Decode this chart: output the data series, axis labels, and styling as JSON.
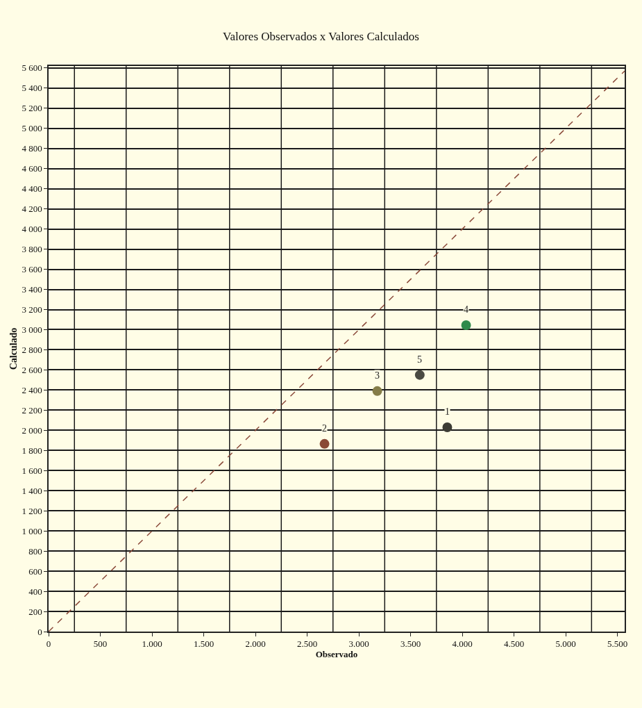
{
  "chart_data": {
    "type": "scatter",
    "title": "Valores Observados x Valores Calculados",
    "xlabel": "Observado",
    "ylabel": "Calculado",
    "x": [
      3855,
      2668,
      3178,
      4037,
      3589
    ],
    "series": [
      {
        "colors": [
          "#3c3c34",
          "#8a4a36",
          "#857d48",
          "#2f8a4c",
          "#4a4a42"
        ],
        "values": [
          2030,
          1865,
          2390,
          3045,
          2550
        ],
        "marker": "circle"
      },
      {
        "type": "line",
        "color": "#8b4a3a",
        "x": [
          0,
          5570
        ],
        "values": [
          0,
          5570
        ],
        "line_style": "dashed",
        "marker": "none"
      }
    ],
    "xlim": [
      0,
      5570
    ],
    "ylim": [
      0,
      5620
    ],
    "xticks": [
      0,
      500,
      {
        "value": 1000,
        "label": "1.000"
      },
      {
        "value": 1500,
        "label": "1.500"
      },
      {
        "value": 2000,
        "label": "2.000"
      },
      {
        "value": 2500,
        "label": "2.500"
      },
      {
        "value": 3000,
        "label": "3.000"
      },
      {
        "value": 3500,
        "label": "3.500"
      },
      {
        "value": 4000,
        "label": "4.000"
      },
      {
        "value": 4500,
        "label": "4.500"
      },
      {
        "value": 5000,
        "label": "5.000"
      },
      {
        "value": 5500,
        "label": "5.500"
      },
      {
        "value": 250,
        "label": null
      },
      {
        "value": 750,
        "label": null
      },
      {
        "value": 1250,
        "label": null
      },
      {
        "value": 1750,
        "label": null
      },
      {
        "value": 2250,
        "label": null
      },
      {
        "value": 2750,
        "label": null
      },
      {
        "value": 3250,
        "label": null
      },
      {
        "value": 3750,
        "label": null
      },
      {
        "value": 4250,
        "label": null
      },
      {
        "value": 4750,
        "label": null
      },
      {
        "value": 5250,
        "label": null
      }
    ],
    "yticks": [
      0,
      200,
      400,
      600,
      800,
      {
        "value": 1000,
        "label": "1 000"
      },
      {
        "value": 1200,
        "label": "1 200"
      },
      {
        "value": 1400,
        "label": "1 400"
      },
      {
        "value": 1600,
        "label": "1 600"
      },
      {
        "value": 1800,
        "label": "1 800"
      },
      {
        "value": 2000,
        "label": "2 000"
      },
      {
        "value": 2200,
        "label": "2 200"
      },
      {
        "value": 2400,
        "label": "2 400"
      },
      {
        "value": 2600,
        "label": "2 600"
      },
      {
        "value": 2800,
        "label": "2 800"
      },
      {
        "value": 3000,
        "label": "3 000"
      },
      {
        "value": 3200,
        "label": "3 200"
      },
      {
        "value": 3400,
        "label": "3 400"
      },
      {
        "value": 3600,
        "label": "3 600"
      },
      {
        "value": 3800,
        "label": "3 800"
      },
      {
        "value": 4000,
        "label": "4 000"
      },
      {
        "value": 4200,
        "label": "4 200"
      },
      {
        "value": 4400,
        "label": "4 400"
      },
      {
        "value": 4600,
        "label": "4 600"
      },
      {
        "value": 4800,
        "label": "4 800"
      },
      {
        "value": 5000,
        "label": "5 000"
      },
      {
        "value": 5200,
        "label": "5 200"
      },
      {
        "value": 5400,
        "label": "5 400"
      },
      {
        "value": 5600,
        "label": "5 600"
      }
    ],
    "annotations": [
      {
        "text": "1",
        "x": 3855,
        "y": 2030
      },
      {
        "text": "2",
        "x": 2668,
        "y": 1865
      },
      {
        "text": "3",
        "x": 3178,
        "y": 2390
      },
      {
        "text": "4",
        "x": 4037,
        "y": 3045
      },
      {
        "text": "5",
        "x": 3589,
        "y": 2550
      }
    ],
    "grid": true
  }
}
